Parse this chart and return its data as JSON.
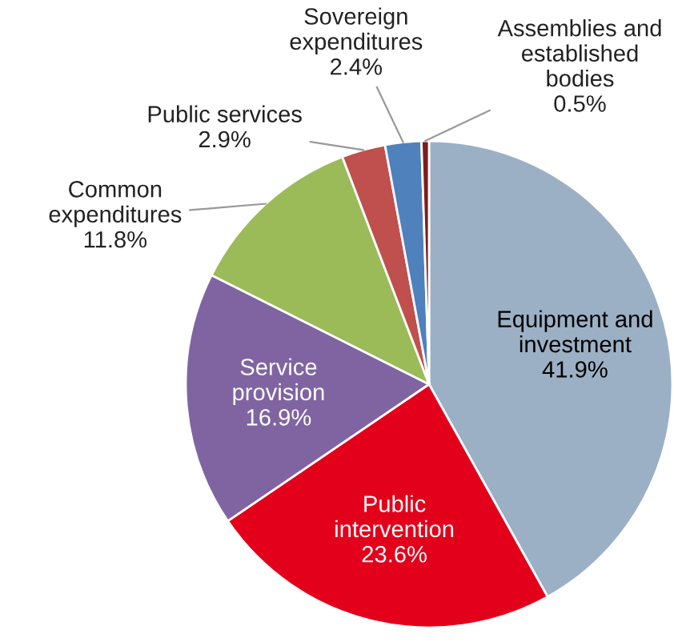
{
  "chart_data": {
    "type": "pie",
    "categories": [
      "Equipment and\ninvestment",
      "Public\nintervention",
      "Service\nprovision",
      "Common\nexpenditures",
      "Public services",
      "Sovereign\nexpenditures",
      "Assemblies and\nestablished\nbodies"
    ],
    "values": [
      41.9,
      23.6,
      16.9,
      11.8,
      2.9,
      2.4,
      0.5
    ],
    "value_labels": [
      "41.9%",
      "23.6%",
      "16.9%",
      "11.8%",
      "2.9%",
      "2.4%",
      "0.5%"
    ],
    "colors": [
      "#9bb0c4",
      "#e3001b",
      "#8064a2",
      "#9bbb59",
      "#c0504d",
      "#4f81bd",
      "#7f1d1d"
    ]
  }
}
